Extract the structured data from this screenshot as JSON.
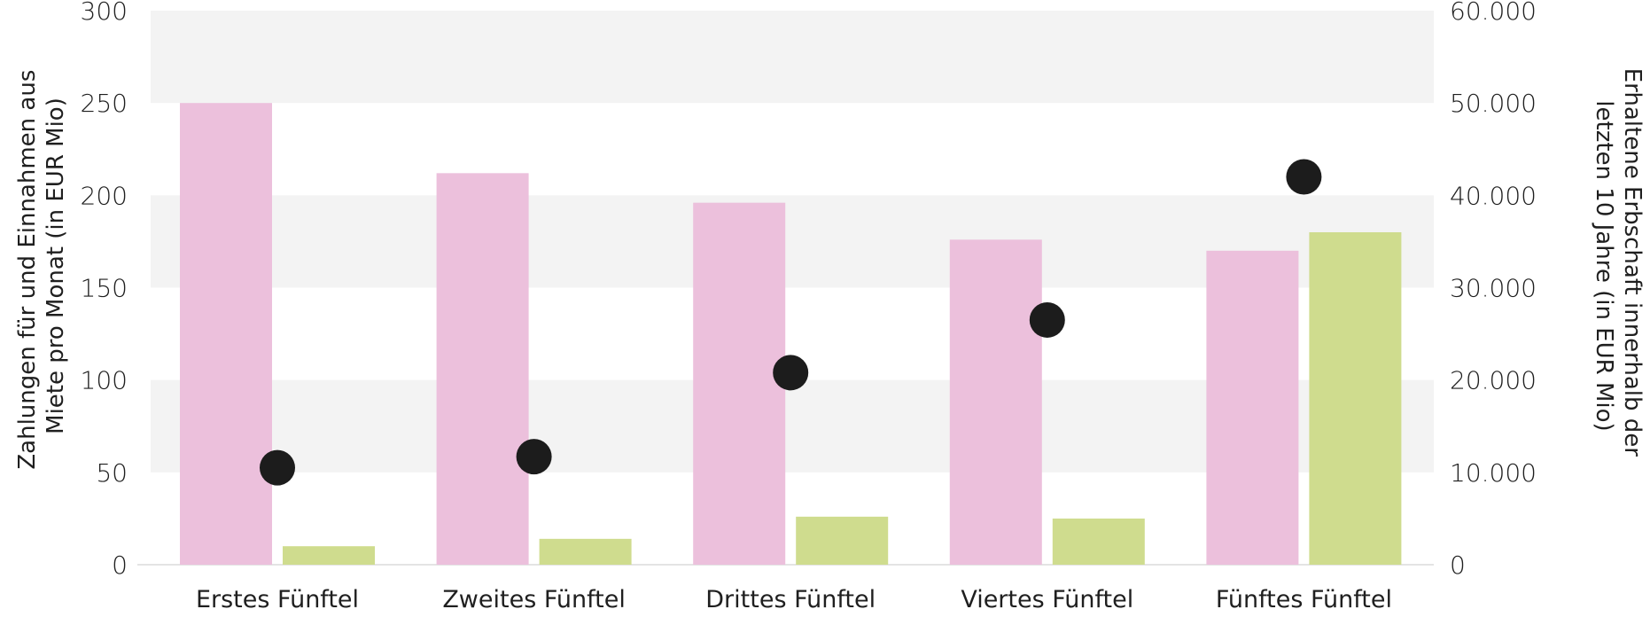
{
  "chart_data": {
    "type": "bar",
    "categories": [
      "Erstes Fünftel",
      "Zweites Fünftel",
      "Drittes Fünftel",
      "Viertes Fünftel",
      "Fünftes Fünftel"
    ],
    "series": [
      {
        "axis": "left",
        "kind": "bar",
        "color": "#ecc0dc",
        "values": [
          250,
          212,
          196,
          176,
          170
        ]
      },
      {
        "axis": "left",
        "kind": "bar",
        "color": "#cfdc8e",
        "values": [
          10,
          14,
          26,
          25,
          180
        ]
      },
      {
        "axis": "right",
        "kind": "dot",
        "color": "#1c1c1c",
        "values": [
          10500,
          11700,
          20800,
          26500,
          42000
        ]
      }
    ],
    "ylabel_left": [
      "Zahlungen für und Einnahmen aus",
      "Miete pro Monat (in EUR Mio)"
    ],
    "ylabel_right": [
      "Erhaltene Erbschaft innerhalb der",
      "letzten 10 Jahre (in EUR Mio)"
    ],
    "ylim_left": [
      0,
      300
    ],
    "ylim_right": [
      0,
      60000
    ],
    "yticks_left": [
      "0",
      "50",
      "100",
      "150",
      "200",
      "250",
      "300"
    ],
    "yticks_right": [
      "0",
      "10.000",
      "20.000",
      "30.000",
      "40.000",
      "50.000",
      "60.000"
    ],
    "grid": "alternating horizontal bands",
    "legend": "none"
  }
}
